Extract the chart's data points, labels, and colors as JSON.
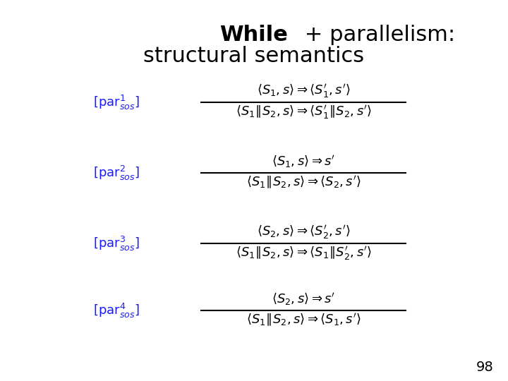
{
  "title_bold": "While",
  "title_rest": " + parallelism:\nstructural semantics",
  "background_color": "#ffffff",
  "label_color": "#1a1aff",
  "math_color": "#000000",
  "page_number": "98",
  "rules": [
    {
      "label": "[par$^1_{sos}$]",
      "numerator": "$\\langle S_1, s\\rangle \\Rightarrow \\langle S_1', s'\\rangle$",
      "denominator": "$\\langle S_1\\!\\boxed{\\!S_2}, s\\rangle \\Rightarrow \\langle S_1'\\!\\boxed{\\!S_2}, s'\\rangle$"
    },
    {
      "label": "[par$^2_{sos}$]",
      "numerator": "$\\langle S_1, s\\rangle \\Rightarrow s'$",
      "denominator": "$\\langle S_1\\!\\boxed{\\!S_2}, s\\rangle \\Rightarrow \\langle S_2, s'\\rangle$"
    },
    {
      "label": "[par$^3_{sos}$]",
      "numerator": "$\\langle S_2, s\\rangle \\Rightarrow \\langle S_2', s'\\rangle$",
      "denominator": "$\\langle S_1\\!\\boxed{\\!S_2}, s\\rangle \\Rightarrow \\langle S_1\\!\\boxed{\\!S_2'}, s'\\rangle$"
    },
    {
      "label": "[par$^4_{sos}$]",
      "numerator": "$\\langle S_2, s\\rangle \\Rightarrow s'$",
      "denominator": "$\\langle S_1\\!\\boxed{\\!S_2}, s\\rangle \\Rightarrow \\langle S_1, s'\\rangle$"
    }
  ]
}
